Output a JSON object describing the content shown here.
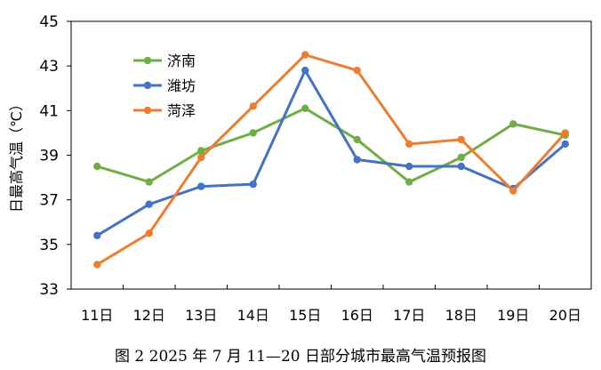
{
  "chart_data": {
    "type": "line",
    "title": "",
    "xlabel": "",
    "ylabel": "日最高气温（℃）",
    "categories": [
      "11日",
      "12日",
      "13日",
      "14日",
      "15日",
      "16日",
      "17日",
      "18日",
      "19日",
      "20日"
    ],
    "ylim": [
      33,
      45
    ],
    "yticks": [
      "33",
      "35",
      "37",
      "39",
      "41",
      "43",
      "45"
    ],
    "grid": false,
    "legend_position": "top-left",
    "series": [
      {
        "name": "济南",
        "color": "#70AD47",
        "values": [
          38.5,
          37.8,
          39.2,
          40.0,
          41.1,
          39.7,
          37.8,
          38.9,
          40.4,
          39.9
        ]
      },
      {
        "name": "潍坊",
        "color": "#4472C4",
        "values": [
          35.4,
          36.8,
          37.6,
          37.7,
          42.8,
          38.8,
          38.5,
          38.5,
          37.5,
          39.5
        ]
      },
      {
        "name": "菏泽",
        "color": "#ED7D31",
        "values": [
          34.1,
          35.5,
          38.9,
          41.2,
          43.5,
          42.8,
          39.5,
          39.7,
          37.4,
          40.0
        ]
      }
    ]
  },
  "caption": "图 2  2025 年 7 月 11—20 日部分城市最高气温预报图"
}
